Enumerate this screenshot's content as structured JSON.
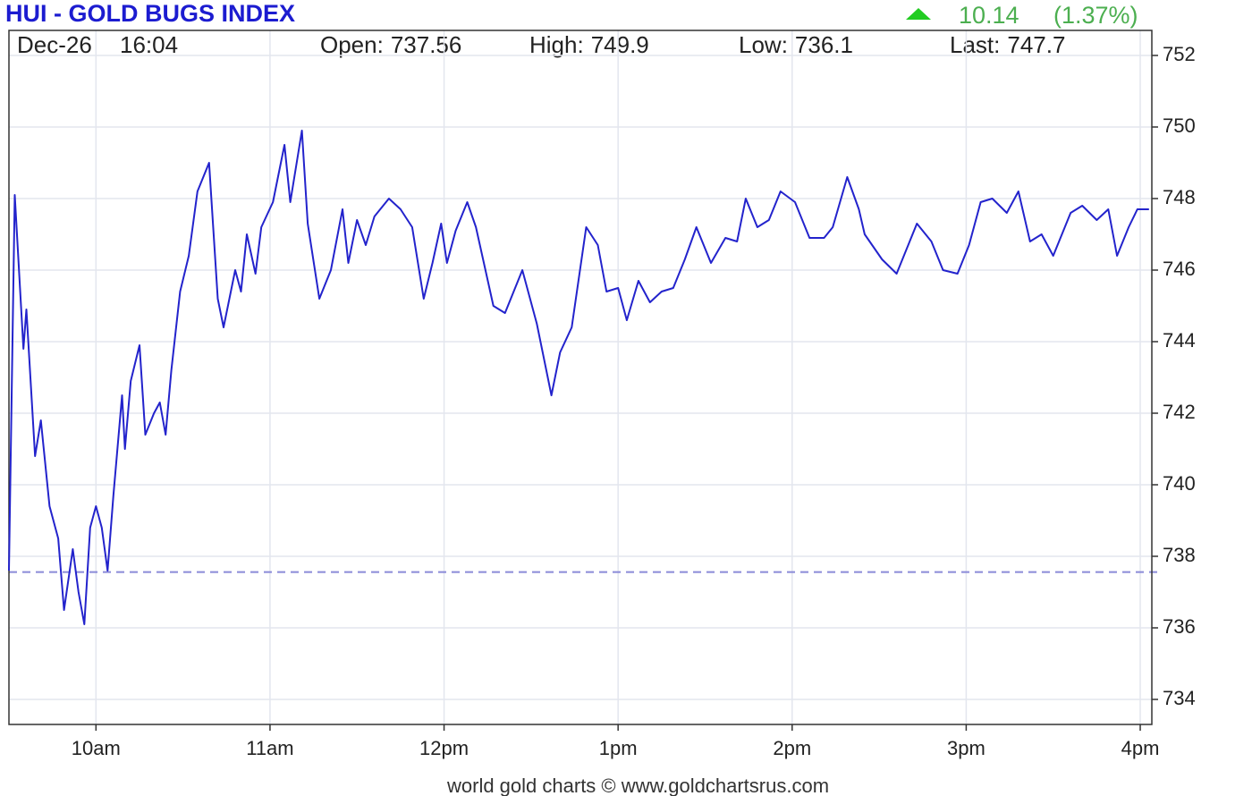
{
  "chart_data": {
    "type": "line",
    "title": "HUI - GOLD BUGS INDEX",
    "change": 10.14,
    "change_pct": "(1.37%)",
    "date": "Dec-26",
    "time": "16:04",
    "stats": [
      {
        "label": "Open:",
        "value": 737.56
      },
      {
        "label": "High:",
        "value": 749.9
      },
      {
        "label": "Low:",
        "value": 736.1
      },
      {
        "label": "Last:",
        "value": 747.7
      }
    ],
    "footer": "world gold charts © www.goldchartsrus.com",
    "x": [
      570,
      572,
      575,
      576,
      579,
      581,
      584,
      587,
      589,
      592,
      594,
      596,
      598,
      600,
      602,
      604,
      606,
      609,
      610,
      612,
      615,
      617,
      620,
      622,
      624,
      626,
      629,
      632,
      635,
      639,
      642,
      644,
      648,
      650,
      652,
      655,
      657,
      661,
      665,
      667,
      671,
      673,
      677,
      681,
      685,
      687,
      690,
      693,
      696,
      701,
      705,
      709,
      713,
      716,
      719,
      721,
      724,
      728,
      731,
      737,
      741,
      744,
      747,
      752,
      757,
      760,
      764,
      769,
      773,
      776,
      780,
      783,
      787,
      791,
      795,
      799,
      803,
      807,
      812,
      817,
      821,
      824,
      828,
      832,
      836,
      841,
      846,
      851,
      854,
      859,
      863,
      865,
      871,
      876,
      883,
      888,
      892,
      897,
      901,
      905,
      909,
      914,
      918,
      922,
      926,
      930,
      936,
      940,
      945,
      949,
      952,
      956,
      959,
      963
    ],
    "series": [
      {
        "name": "HUI",
        "color": "#2323cc",
        "values": [
          737.6,
          748.1,
          743.8,
          744.9,
          740.8,
          741.8,
          739.4,
          738.5,
          736.5,
          738.2,
          737.0,
          736.1,
          738.8,
          739.4,
          738.8,
          737.6,
          739.7,
          742.5,
          741.0,
          742.9,
          743.9,
          741.4,
          742.0,
          742.3,
          741.4,
          743.2,
          745.4,
          746.4,
          748.2,
          749.0,
          745.2,
          744.4,
          746.0,
          745.4,
          747.0,
          745.9,
          747.2,
          747.9,
          749.5,
          747.9,
          749.9,
          747.3,
          745.2,
          746.0,
          747.7,
          746.2,
          747.4,
          746.7,
          747.5,
          748.0,
          747.7,
          747.2,
          745.2,
          746.2,
          747.3,
          746.2,
          747.1,
          747.9,
          747.2,
          745.0,
          744.8,
          745.4,
          746.0,
          744.5,
          742.5,
          743.7,
          744.4,
          747.2,
          746.7,
          745.4,
          745.5,
          744.6,
          745.7,
          745.1,
          745.4,
          745.5,
          746.3,
          747.2,
          746.2,
          746.9,
          746.8,
          748.0,
          747.2,
          747.4,
          748.2,
          747.9,
          746.9,
          746.9,
          747.2,
          748.6,
          747.7,
          747.0,
          746.3,
          745.9,
          747.3,
          746.8,
          746.0,
          745.9,
          746.7,
          747.9,
          748.0,
          747.6,
          748.2,
          746.8,
          747.0,
          746.4,
          747.6,
          747.8,
          747.4,
          747.7,
          746.4,
          747.2,
          747.7,
          747.7
        ]
      }
    ],
    "xlim": [
      570,
      964
    ],
    "xticks": [
      {
        "value": 600,
        "label": "10am"
      },
      {
        "value": 660,
        "label": "11am"
      },
      {
        "value": 720,
        "label": "12pm"
      },
      {
        "value": 780,
        "label": "1pm"
      },
      {
        "value": 840,
        "label": "2pm"
      },
      {
        "value": 900,
        "label": "3pm"
      },
      {
        "value": 960,
        "label": "4pm"
      }
    ],
    "ylim": [
      733.3,
      752.7
    ],
    "yticks": [
      734,
      736,
      738,
      740,
      742,
      744,
      746,
      748,
      750,
      752
    ],
    "grid": true
  }
}
